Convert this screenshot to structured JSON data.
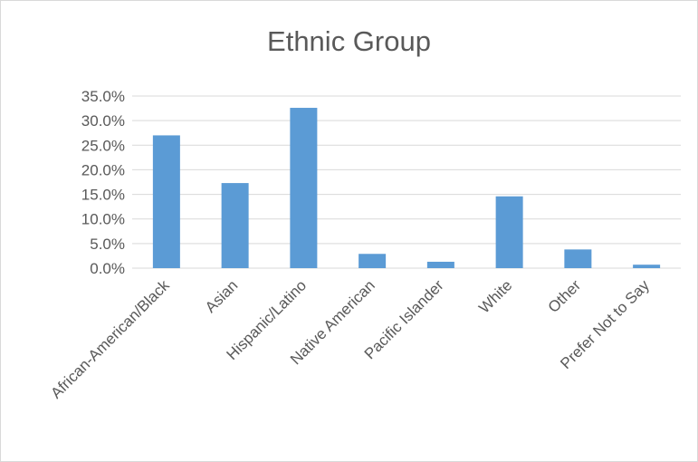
{
  "chart_data": {
    "type": "bar",
    "title": "Ethnic Group",
    "categories": [
      "African-American/Black",
      "Asian",
      "Hispanic/Latino",
      "Native American",
      "Pacific Islander",
      "White",
      "Other",
      "Prefer Not to Say"
    ],
    "values": [
      27.0,
      17.3,
      32.6,
      2.9,
      1.3,
      14.6,
      3.8,
      0.7
    ],
    "value_format": "percent",
    "ylim": [
      0,
      35
    ],
    "yticks": [
      "0.0%",
      "5.0%",
      "10.0%",
      "15.0%",
      "20.0%",
      "25.0%",
      "30.0%",
      "35.0%"
    ],
    "ytick_values": [
      0,
      5,
      10,
      15,
      20,
      25,
      30,
      35
    ],
    "grid": true,
    "legend": "none",
    "bar_color": "#5b9bd5",
    "grid_color": "#d9d9d9",
    "text_color": "#595959"
  }
}
